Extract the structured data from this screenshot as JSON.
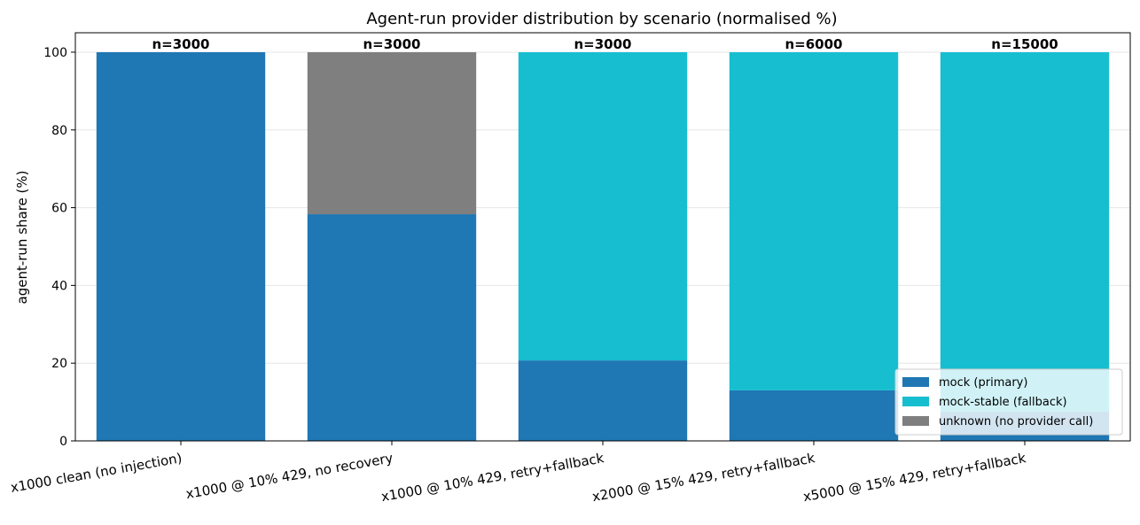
{
  "chart_data": {
    "type": "bar",
    "stacked": true,
    "title": "Agent-run provider distribution by scenario (normalised %)",
    "xlabel": "",
    "ylabel": "agent-run share (%)",
    "ylim": [
      0,
      105
    ],
    "yticks": [
      0,
      20,
      40,
      60,
      80,
      100
    ],
    "grid": true,
    "legend_position": "bottom-right",
    "categories": [
      "x1000 clean (no injection)",
      "x1000 @ 10% 429, no recovery",
      "x1000 @ 10% 429, retry+fallback",
      "x2000 @ 15% 429, retry+fallback",
      "x5000 @ 15% 429, retry+fallback"
    ],
    "bar_labels": [
      "n=3000",
      "n=3000",
      "n=3000",
      "n=6000",
      "n=15000"
    ],
    "series": [
      {
        "name": "mock (primary)",
        "color": "#1f77b4",
        "values": [
          100,
          58.3,
          20.7,
          13.0,
          7.5
        ]
      },
      {
        "name": "mock-stable (fallback)",
        "color": "#17becf",
        "values": [
          0,
          0,
          79.3,
          87.0,
          92.5
        ]
      },
      {
        "name": "unknown (no provider call)",
        "color": "#7f7f7f",
        "values": [
          0,
          41.7,
          0,
          0,
          0
        ]
      }
    ]
  }
}
